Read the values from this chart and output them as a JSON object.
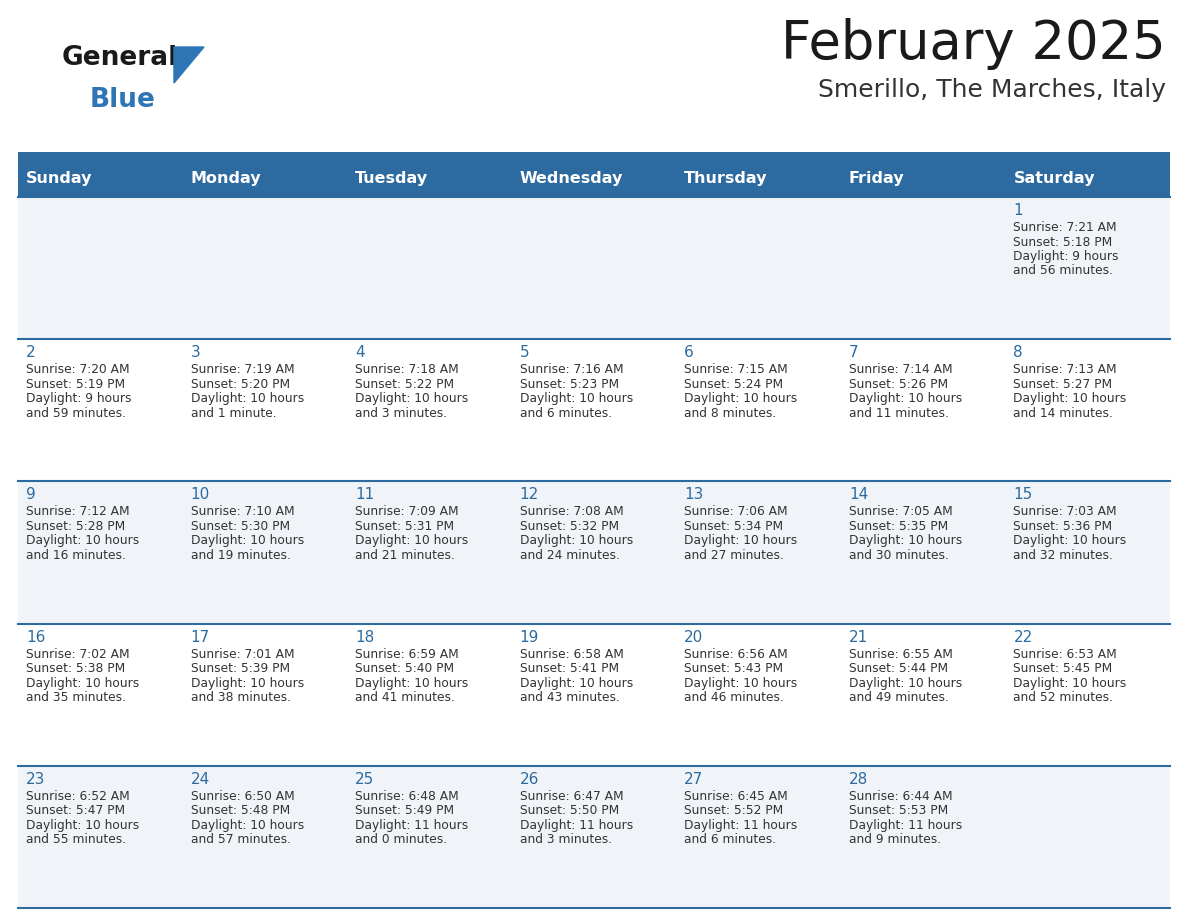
{
  "title": "February 2025",
  "subtitle": "Smerillo, The Marches, Italy",
  "days_of_week": [
    "Sunday",
    "Monday",
    "Tuesday",
    "Wednesday",
    "Thursday",
    "Friday",
    "Saturday"
  ],
  "header_bg": "#2D6A9F",
  "header_text": "#FFFFFF",
  "row_bg_odd": "#F0F4F8",
  "row_bg_even": "#FFFFFF",
  "border_color": "#2D6A9F",
  "text_color": "#333333",
  "date_color": "#2D6A9F",
  "logo_general_color": "#1a1a1a",
  "logo_blue_color": "#2E75B6",
  "calendar_data": [
    [
      null,
      null,
      null,
      null,
      null,
      null,
      {
        "day": 1,
        "sunrise": "7:21 AM",
        "sunset": "5:18 PM",
        "daylight": "9 hours and 56 minutes."
      }
    ],
    [
      {
        "day": 2,
        "sunrise": "7:20 AM",
        "sunset": "5:19 PM",
        "daylight": "9 hours and 59 minutes."
      },
      {
        "day": 3,
        "sunrise": "7:19 AM",
        "sunset": "5:20 PM",
        "daylight": "10 hours and 1 minute."
      },
      {
        "day": 4,
        "sunrise": "7:18 AM",
        "sunset": "5:22 PM",
        "daylight": "10 hours and 3 minutes."
      },
      {
        "day": 5,
        "sunrise": "7:16 AM",
        "sunset": "5:23 PM",
        "daylight": "10 hours and 6 minutes."
      },
      {
        "day": 6,
        "sunrise": "7:15 AM",
        "sunset": "5:24 PM",
        "daylight": "10 hours and 8 minutes."
      },
      {
        "day": 7,
        "sunrise": "7:14 AM",
        "sunset": "5:26 PM",
        "daylight": "10 hours and 11 minutes."
      },
      {
        "day": 8,
        "sunrise": "7:13 AM",
        "sunset": "5:27 PM",
        "daylight": "10 hours and 14 minutes."
      }
    ],
    [
      {
        "day": 9,
        "sunrise": "7:12 AM",
        "sunset": "5:28 PM",
        "daylight": "10 hours and 16 minutes."
      },
      {
        "day": 10,
        "sunrise": "7:10 AM",
        "sunset": "5:30 PM",
        "daylight": "10 hours and 19 minutes."
      },
      {
        "day": 11,
        "sunrise": "7:09 AM",
        "sunset": "5:31 PM",
        "daylight": "10 hours and 21 minutes."
      },
      {
        "day": 12,
        "sunrise": "7:08 AM",
        "sunset": "5:32 PM",
        "daylight": "10 hours and 24 minutes."
      },
      {
        "day": 13,
        "sunrise": "7:06 AM",
        "sunset": "5:34 PM",
        "daylight": "10 hours and 27 minutes."
      },
      {
        "day": 14,
        "sunrise": "7:05 AM",
        "sunset": "5:35 PM",
        "daylight": "10 hours and 30 minutes."
      },
      {
        "day": 15,
        "sunrise": "7:03 AM",
        "sunset": "5:36 PM",
        "daylight": "10 hours and 32 minutes."
      }
    ],
    [
      {
        "day": 16,
        "sunrise": "7:02 AM",
        "sunset": "5:38 PM",
        "daylight": "10 hours and 35 minutes."
      },
      {
        "day": 17,
        "sunrise": "7:01 AM",
        "sunset": "5:39 PM",
        "daylight": "10 hours and 38 minutes."
      },
      {
        "day": 18,
        "sunrise": "6:59 AM",
        "sunset": "5:40 PM",
        "daylight": "10 hours and 41 minutes."
      },
      {
        "day": 19,
        "sunrise": "6:58 AM",
        "sunset": "5:41 PM",
        "daylight": "10 hours and 43 minutes."
      },
      {
        "day": 20,
        "sunrise": "6:56 AM",
        "sunset": "5:43 PM",
        "daylight": "10 hours and 46 minutes."
      },
      {
        "day": 21,
        "sunrise": "6:55 AM",
        "sunset": "5:44 PM",
        "daylight": "10 hours and 49 minutes."
      },
      {
        "day": 22,
        "sunrise": "6:53 AM",
        "sunset": "5:45 PM",
        "daylight": "10 hours and 52 minutes."
      }
    ],
    [
      {
        "day": 23,
        "sunrise": "6:52 AM",
        "sunset": "5:47 PM",
        "daylight": "10 hours and 55 minutes."
      },
      {
        "day": 24,
        "sunrise": "6:50 AM",
        "sunset": "5:48 PM",
        "daylight": "10 hours and 57 minutes."
      },
      {
        "day": 25,
        "sunrise": "6:48 AM",
        "sunset": "5:49 PM",
        "daylight": "11 hours and 0 minutes."
      },
      {
        "day": 26,
        "sunrise": "6:47 AM",
        "sunset": "5:50 PM",
        "daylight": "11 hours and 3 minutes."
      },
      {
        "day": 27,
        "sunrise": "6:45 AM",
        "sunset": "5:52 PM",
        "daylight": "11 hours and 6 minutes."
      },
      {
        "day": 28,
        "sunrise": "6:44 AM",
        "sunset": "5:53 PM",
        "daylight": "11 hours and 9 minutes."
      },
      null
    ]
  ]
}
